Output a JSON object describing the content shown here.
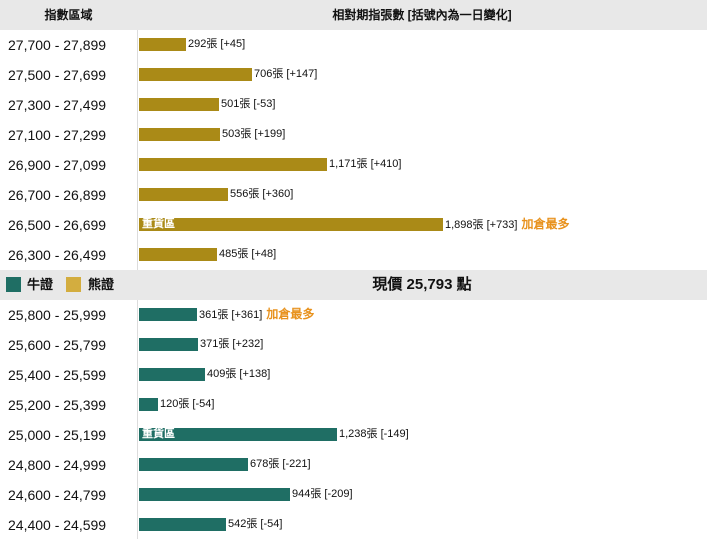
{
  "header": {
    "left": "指數區域",
    "right": "相對期指張數 [括號內為一日變化]"
  },
  "legend": {
    "bull": "牛證",
    "bear": "熊證"
  },
  "current_price": "現價 25,793 點",
  "colors": {
    "bear": "#aa8a17",
    "bull": "#1f6e64",
    "note": "#e8921d",
    "legend_bear": "#d3ad3f"
  },
  "chart_data": {
    "type": "bar",
    "orientation": "horizontal",
    "bear": {
      "rows": [
        {
          "range": "27,700 - 27,899",
          "value": 292,
          "label": "292張 [+45]",
          "tag": "",
          "note": ""
        },
        {
          "range": "27,500 - 27,699",
          "value": 706,
          "label": "706張 [+147]",
          "tag": "",
          "note": ""
        },
        {
          "range": "27,300 - 27,499",
          "value": 501,
          "label": "501張 [-53]",
          "tag": "",
          "note": ""
        },
        {
          "range": "27,100 - 27,299",
          "value": 503,
          "label": "503張 [+199]",
          "tag": "",
          "note": ""
        },
        {
          "range": "26,900 - 27,099",
          "value": 1171,
          "label": "1,171張 [+410]",
          "tag": "",
          "note": ""
        },
        {
          "range": "26,700 - 26,899",
          "value": 556,
          "label": "556張 [+360]",
          "tag": "",
          "note": ""
        },
        {
          "range": "26,500 - 26,699",
          "value": 1898,
          "label": "1,898張 [+733]",
          "tag": "重貨區",
          "note": "加倉最多"
        },
        {
          "range": "26,300 - 26,499",
          "value": 485,
          "label": "485張 [+48]",
          "tag": "",
          "note": ""
        }
      ]
    },
    "bull": {
      "rows": [
        {
          "range": "25,800 - 25,999",
          "value": 361,
          "label": "361張 [+361]",
          "tag": "",
          "note": "加倉最多"
        },
        {
          "range": "25,600 - 25,799",
          "value": 371,
          "label": "371張 [+232]",
          "tag": "",
          "note": ""
        },
        {
          "range": "25,400 - 25,599",
          "value": 409,
          "label": "409張 [+138]",
          "tag": "",
          "note": ""
        },
        {
          "range": "25,200 - 25,399",
          "value": 120,
          "label": "120張 [-54]",
          "tag": "",
          "note": ""
        },
        {
          "range": "25,000 - 25,199",
          "value": 1238,
          "label": "1,238張 [-149]",
          "tag": "重貨區",
          "note": ""
        },
        {
          "range": "24,800 - 24,999",
          "value": 678,
          "label": "678張 [-221]",
          "tag": "",
          "note": ""
        },
        {
          "range": "24,600 - 24,799",
          "value": 944,
          "label": "944張 [-209]",
          "tag": "",
          "note": ""
        },
        {
          "range": "24,400 - 24,599",
          "value": 542,
          "label": "542張 [-54]",
          "tag": "",
          "note": ""
        }
      ]
    }
  }
}
